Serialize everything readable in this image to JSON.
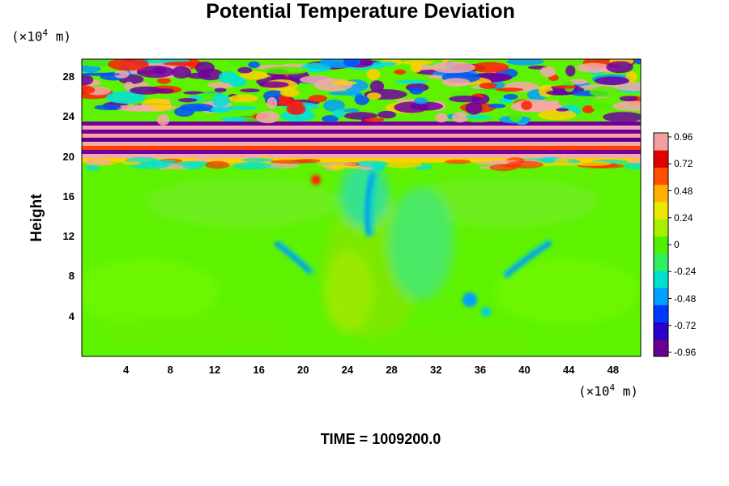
{
  "chart_data": {
    "type": "heatmap",
    "title": "Potential Temperature Deviation",
    "ylabel": "Height",
    "y_unit": "(×10",
    "y_unit_exp": "4",
    "y_unit_tail": " m)",
    "x_unit": "(×10",
    "x_unit_exp": "4",
    "x_unit_tail": " m)",
    "x_ticks": [
      "4",
      "8",
      "12",
      "16",
      "20",
      "24",
      "28",
      "32",
      "36",
      "40",
      "44",
      "48"
    ],
    "y_ticks": [
      "4",
      "8",
      "12",
      "16",
      "20",
      "24",
      "28"
    ],
    "xlim": [
      0,
      50.5
    ],
    "ylim": [
      0,
      29.8
    ],
    "colorbar": {
      "ticks": [
        "0.96",
        "0.72",
        "0.48",
        "0.24",
        "0",
        "-0.24",
        "-0.48",
        "-0.72",
        "-0.96"
      ],
      "range": [
        -0.96,
        0.96
      ],
      "colors": [
        "#6a0090",
        "#2a00c8",
        "#0038ff",
        "#00a0ff",
        "#00e0d0",
        "#30f060",
        "#50f000",
        "#a8f000",
        "#e8e800",
        "#ffb000",
        "#ff5000",
        "#e00000",
        "#f0a0a0"
      ]
    },
    "footer": "TIME = 1009200.0"
  }
}
